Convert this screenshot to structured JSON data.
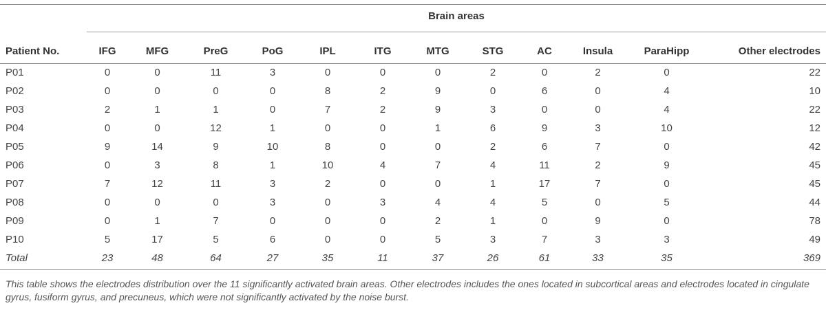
{
  "table": {
    "group_header": "Brain areas",
    "columns": [
      "Patient No.",
      "IFG",
      "MFG",
      "PreG",
      "PoG",
      "IPL",
      "ITG",
      "MTG",
      "STG",
      "AC",
      "Insula",
      "ParaHipp",
      "Other electrodes"
    ],
    "rows": [
      [
        "P01",
        "0",
        "0",
        "11",
        "3",
        "0",
        "0",
        "0",
        "2",
        "0",
        "2",
        "0",
        "22"
      ],
      [
        "P02",
        "0",
        "0",
        "0",
        "0",
        "8",
        "2",
        "9",
        "0",
        "6",
        "0",
        "4",
        "10"
      ],
      [
        "P03",
        "2",
        "1",
        "1",
        "0",
        "7",
        "2",
        "9",
        "3",
        "0",
        "0",
        "4",
        "22"
      ],
      [
        "P04",
        "0",
        "0",
        "12",
        "1",
        "0",
        "0",
        "1",
        "6",
        "9",
        "3",
        "10",
        "12"
      ],
      [
        "P05",
        "9",
        "14",
        "9",
        "10",
        "8",
        "0",
        "0",
        "2",
        "6",
        "7",
        "0",
        "42"
      ],
      [
        "P06",
        "0",
        "3",
        "8",
        "1",
        "10",
        "4",
        "7",
        "4",
        "11",
        "2",
        "9",
        "45"
      ],
      [
        "P07",
        "7",
        "12",
        "11",
        "3",
        "2",
        "0",
        "0",
        "1",
        "17",
        "7",
        "0",
        "45"
      ],
      [
        "P08",
        "0",
        "0",
        "0",
        "3",
        "0",
        "3",
        "4",
        "4",
        "5",
        "0",
        "5",
        "44"
      ],
      [
        "P09",
        "0",
        "1",
        "7",
        "0",
        "0",
        "0",
        "2",
        "1",
        "0",
        "9",
        "0",
        "78"
      ],
      [
        "P10",
        "5",
        "17",
        "5",
        "6",
        "0",
        "0",
        "5",
        "3",
        "7",
        "3",
        "3",
        "49"
      ]
    ],
    "total": [
      "Total",
      "23",
      "48",
      "64",
      "27",
      "35",
      "11",
      "37",
      "26",
      "61",
      "33",
      "35",
      "369"
    ]
  },
  "caption": "This table shows the electrodes distribution over the 11 significantly activated brain areas. Other electrodes includes the ones located in subcortical areas and electrodes located in cingulate gyrus, fusiform gyrus, and precuneus, which were not significantly activated by the noise burst."
}
